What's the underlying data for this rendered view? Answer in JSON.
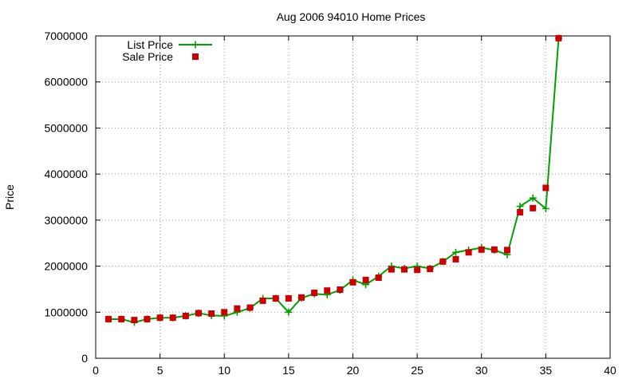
{
  "chart_data": {
    "type": "line",
    "title": "Aug 2006 94010 Home Prices",
    "xlabel": "",
    "ylabel": "Price",
    "xlim": [
      0,
      40
    ],
    "ylim": [
      0,
      7000000
    ],
    "xticks": [
      0,
      5,
      10,
      15,
      20,
      25,
      30,
      35,
      40
    ],
    "yticks": [
      0,
      1000000,
      2000000,
      3000000,
      4000000,
      5000000,
      6000000,
      7000000
    ],
    "grid": true,
    "legend_position": "top-left",
    "series": [
      {
        "name": "List Price",
        "style": "line-with-plus-markers",
        "color": "#00a000",
        "x": [
          1,
          2,
          3,
          4,
          5,
          6,
          7,
          8,
          9,
          10,
          11,
          12,
          13,
          14,
          15,
          16,
          17,
          18,
          19,
          20,
          21,
          22,
          23,
          24,
          25,
          26,
          27,
          28,
          29,
          30,
          31,
          32,
          33,
          34,
          35,
          36
        ],
        "y": [
          850000,
          850000,
          780000,
          850000,
          880000,
          880000,
          920000,
          980000,
          930000,
          920000,
          1000000,
          1090000,
          1300000,
          1300000,
          1000000,
          1310000,
          1400000,
          1380000,
          1480000,
          1700000,
          1600000,
          1780000,
          2000000,
          1950000,
          2000000,
          1950000,
          2100000,
          2300000,
          2350000,
          2400000,
          2350000,
          2250000,
          3300000,
          3480000,
          3250000,
          6950000
        ]
      },
      {
        "name": "Sale Price",
        "style": "square-markers",
        "color": "#cc0000",
        "x": [
          1,
          2,
          3,
          4,
          5,
          6,
          7,
          8,
          9,
          10,
          11,
          12,
          13,
          14,
          15,
          16,
          17,
          18,
          19,
          20,
          21,
          22,
          23,
          24,
          25,
          26,
          27,
          28,
          29,
          30,
          31,
          32,
          33,
          34,
          35,
          36
        ],
        "y": [
          850000,
          850000,
          830000,
          850000,
          880000,
          880000,
          920000,
          980000,
          970000,
          1000000,
          1080000,
          1100000,
          1250000,
          1300000,
          1300000,
          1320000,
          1420000,
          1470000,
          1490000,
          1650000,
          1700000,
          1750000,
          1930000,
          1930000,
          1920000,
          1940000,
          2100000,
          2150000,
          2300000,
          2360000,
          2360000,
          2350000,
          3170000,
          3260000,
          3700000,
          6950000
        ]
      }
    ]
  }
}
